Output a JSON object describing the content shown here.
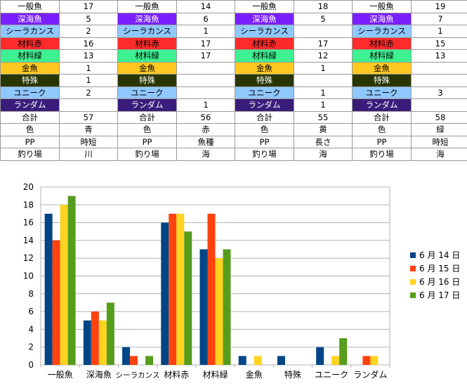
{
  "table": {
    "rows": [
      {
        "label": "一般魚",
        "bg": "#ffffff",
        "fg": "#000000",
        "values": [
          "17",
          "14",
          "18",
          "19"
        ]
      },
      {
        "label": "深海魚",
        "bg": "#7a1fff",
        "fg": "#ffffff",
        "values": [
          "5",
          "6",
          "5",
          "7"
        ]
      },
      {
        "label": "シーラカンス",
        "bg": "#8fc8ff",
        "fg": "#000000",
        "values": [
          "2",
          "1",
          "",
          "1"
        ]
      },
      {
        "label": "材料赤",
        "bg": "#ff2b2b",
        "fg": "#000000",
        "values": [
          "16",
          "17",
          "17",
          "15"
        ]
      },
      {
        "label": "材料緑",
        "bg": "#3df090",
        "fg": "#000000",
        "values": [
          "13",
          "17",
          "12",
          "13"
        ]
      },
      {
        "label": "金魚",
        "bg": "#ffc820",
        "fg": "#000000",
        "values": [
          "1",
          "",
          "1",
          ""
        ]
      },
      {
        "label": "特殊",
        "bg": "#2a3600",
        "fg": "#ffffff",
        "values": [
          "1",
          "",
          "",
          ""
        ]
      },
      {
        "label": "ユニーク",
        "bg": "#8fc8ff",
        "fg": "#000000",
        "values": [
          "2",
          "",
          "1",
          "3"
        ]
      },
      {
        "label": "ランダム",
        "bg": "#3a1d7a",
        "fg": "#ffffff",
        "values": [
          "",
          "1",
          "1",
          ""
        ]
      },
      {
        "label": "合計",
        "bg": "#ffffff",
        "fg": "#000000",
        "values": [
          "57",
          "56",
          "55",
          "58"
        ]
      },
      {
        "label": "色",
        "bg": "#ffffff",
        "fg": "#000000",
        "values": [
          "青",
          "赤",
          "黄",
          "緑"
        ]
      },
      {
        "label": "PP",
        "bg": "#ffffff",
        "fg": "#000000",
        "values": [
          "時短",
          "魚種",
          "長さ",
          "時短"
        ]
      },
      {
        "label": "釣り場",
        "bg": "#ffffff",
        "fg": "#000000",
        "values": [
          "川",
          "海",
          "海",
          "海"
        ]
      }
    ]
  },
  "chart_data": {
    "type": "bar",
    "categories": [
      "一般魚",
      "深海魚",
      "シーラカンス",
      "材料赤",
      "材料緑",
      "金魚",
      "特殊",
      "ユニーク",
      "ランダム"
    ],
    "series": [
      {
        "name": "6 月 14 日",
        "color": "#004586",
        "values": [
          17,
          5,
          2,
          16,
          13,
          1,
          1,
          2,
          0
        ]
      },
      {
        "name": "6 月 15 日",
        "color": "#ff420e",
        "values": [
          14,
          6,
          1,
          17,
          17,
          0,
          0,
          0,
          1
        ]
      },
      {
        "name": "6 月 16 日",
        "color": "#ffd320",
        "values": [
          18,
          5,
          0,
          17,
          12,
          1,
          0,
          1,
          1
        ]
      },
      {
        "name": "6 月 17 日",
        "color": "#579d1c",
        "values": [
          19,
          7,
          1,
          15,
          13,
          0,
          0,
          3,
          0
        ]
      }
    ],
    "ylim": [
      0,
      20
    ],
    "yticks": [
      0,
      2,
      4,
      6,
      8,
      10,
      12,
      14,
      16,
      18,
      20
    ],
    "grid": true,
    "legend": "right",
    "title": "",
    "xlabel": "",
    "ylabel": ""
  }
}
